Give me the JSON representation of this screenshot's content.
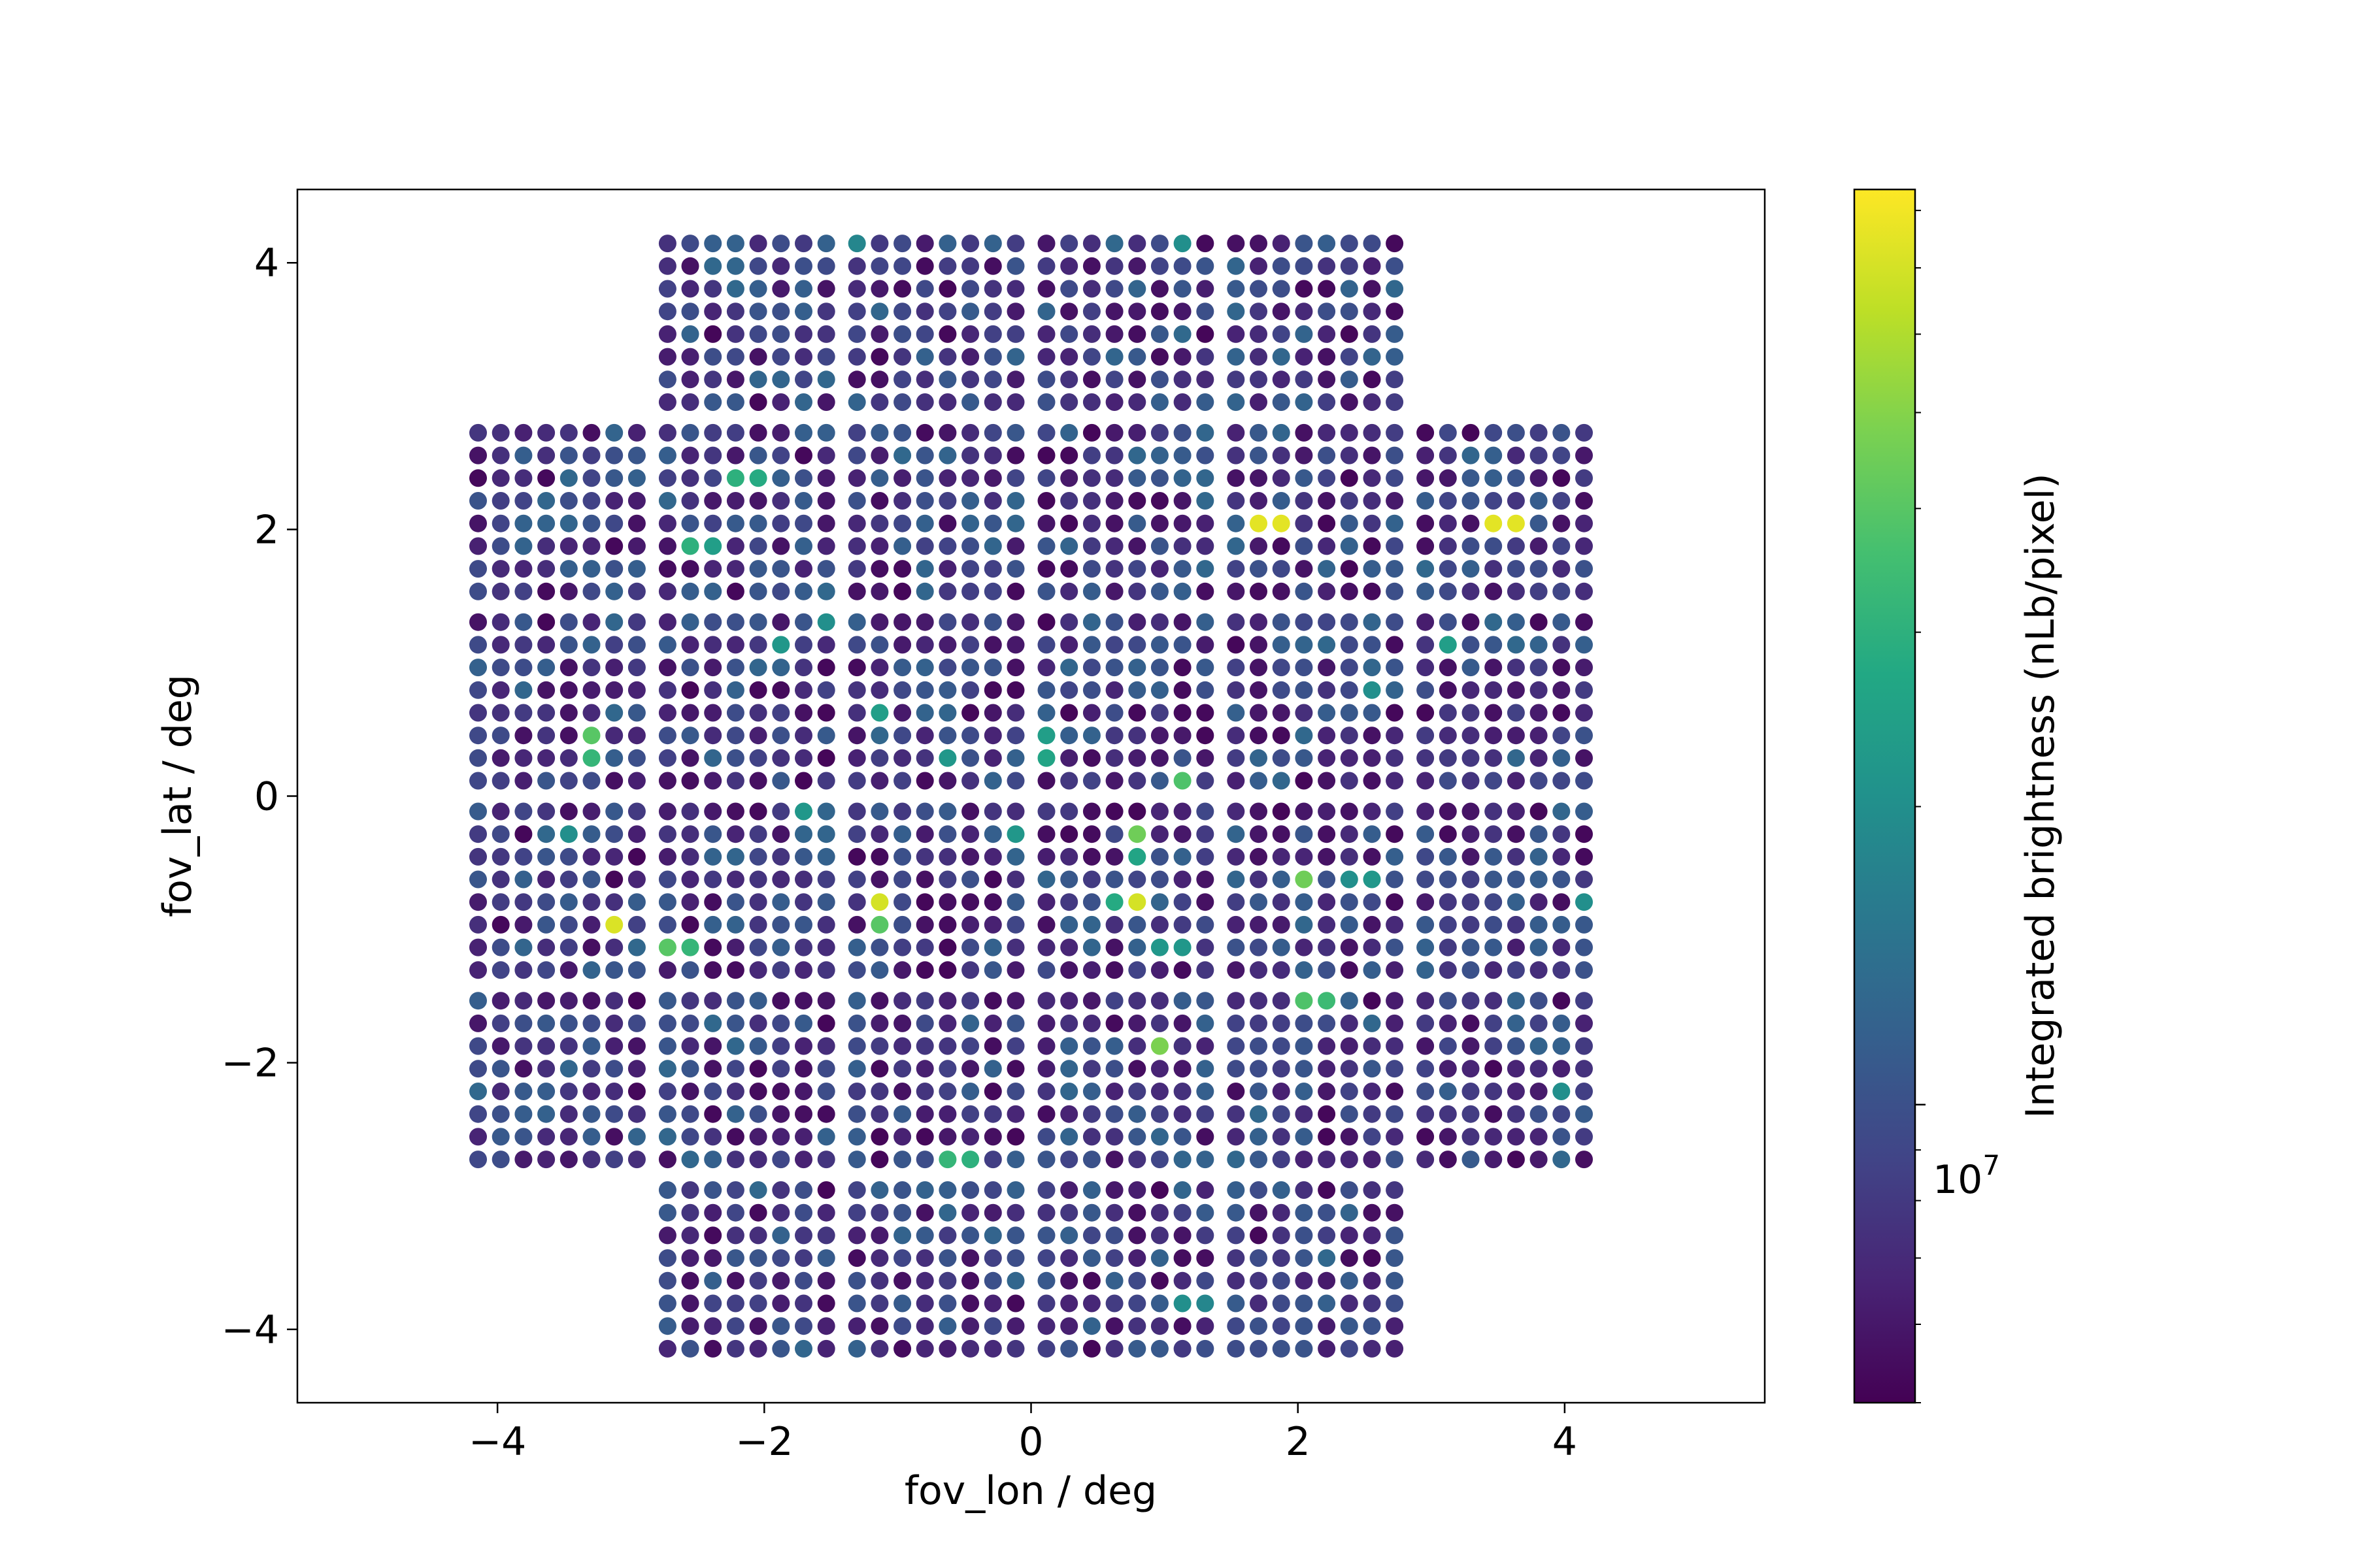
{
  "chart_data": {
    "type": "scatter",
    "title": "",
    "xlabel": "fov_lon / deg",
    "ylabel": "fov_lat / deg",
    "xlim": [
      -5.5,
      5.5
    ],
    "ylim": [
      -4.55,
      4.55
    ],
    "x_ticks": [
      -4,
      -2,
      0,
      2,
      4
    ],
    "y_ticks": [
      -4,
      -2,
      0,
      2,
      4
    ],
    "x_tick_labels": [
      "−4",
      "−2",
      "0",
      "2",
      "4"
    ],
    "y_tick_labels": [
      "−4",
      "−2",
      "0",
      "2",
      "4"
    ],
    "grid": false,
    "legend": "none",
    "point_grid": {
      "spacing_deg": 0.17,
      "points_per_block": 8,
      "block_step_deg": 1.42,
      "block_centers_deg": [
        -3.55,
        -2.13,
        -0.71,
        0.71,
        2.13,
        3.55
      ],
      "excluded_corner_blocks": [
        [
          -3.55,
          3.55
        ],
        [
          3.55,
          3.55
        ],
        [
          -3.55,
          -3.55
        ],
        [
          3.55,
          -3.55
        ]
      ],
      "base_brightness": 7800000,
      "brightness_variation_range": [
        5200000,
        13000000
      ]
    },
    "bright_points": [
      {
        "x": 1.72,
        "y": 2.04,
        "v": 75000000
      },
      {
        "x": 1.89,
        "y": 2.04,
        "v": 75000000
      },
      {
        "x": 3.46,
        "y": 2.04,
        "v": 75000000
      },
      {
        "x": 3.63,
        "y": 2.04,
        "v": 75000000
      },
      {
        "x": -2.21,
        "y": 2.38,
        "v": 30000000
      },
      {
        "x": -2.04,
        "y": 2.38,
        "v": 28000000
      },
      {
        "x": -2.55,
        "y": 1.87,
        "v": 30000000
      },
      {
        "x": -2.38,
        "y": 1.87,
        "v": 24000000
      },
      {
        "x": -3.29,
        "y": 0.45,
        "v": 40000000
      },
      {
        "x": -3.29,
        "y": 0.28,
        "v": 32000000
      },
      {
        "x": -3.12,
        "y": -0.96,
        "v": 72000000
      },
      {
        "x": -2.72,
        "y": -1.13,
        "v": 40000000
      },
      {
        "x": -2.55,
        "y": -1.13,
        "v": 32000000
      },
      {
        "x": -1.13,
        "y": -0.79,
        "v": 70000000
      },
      {
        "x": -1.13,
        "y": -0.96,
        "v": 40000000
      },
      {
        "x": 0.79,
        "y": -0.79,
        "v": 70000000
      },
      {
        "x": 0.79,
        "y": -0.28,
        "v": 45000000
      },
      {
        "x": 0.62,
        "y": -0.79,
        "v": 28000000
      },
      {
        "x": 1.13,
        "y": 0.11,
        "v": 38000000
      },
      {
        "x": 0.96,
        "y": -1.87,
        "v": 48000000
      },
      {
        "x": 2.04,
        "y": -0.62,
        "v": 45000000
      },
      {
        "x": 2.04,
        "y": -1.53,
        "v": 38000000
      },
      {
        "x": 2.21,
        "y": -1.53,
        "v": 34000000
      },
      {
        "x": -0.62,
        "y": -2.72,
        "v": 32000000
      },
      {
        "x": -0.45,
        "y": -2.72,
        "v": 30000000
      },
      {
        "x": 3.12,
        "y": 1.13,
        "v": 24000000
      },
      {
        "x": -1.13,
        "y": 0.62,
        "v": 24000000
      },
      {
        "x": 0.11,
        "y": 0.45,
        "v": 24000000
      },
      {
        "x": 0.11,
        "y": 0.28,
        "v": 26000000
      },
      {
        "x": -0.11,
        "y": -0.28,
        "v": 22000000
      },
      {
        "x": -1.7,
        "y": -0.11,
        "v": 22000000
      },
      {
        "x": -1.87,
        "y": 1.13,
        "v": 22000000
      },
      {
        "x": -1.53,
        "y": 1.3,
        "v": 20000000
      },
      {
        "x": 0.96,
        "y": -1.13,
        "v": 22000000
      },
      {
        "x": 1.13,
        "y": -1.13,
        "v": 22000000
      },
      {
        "x": 2.55,
        "y": -0.62,
        "v": 22000000
      },
      {
        "x": 2.55,
        "y": 0.79,
        "v": 20000000
      },
      {
        "x": -3.46,
        "y": -0.28,
        "v": 20000000
      },
      {
        "x": -2.89,
        "y": -1.13,
        "v": 24000000
      },
      {
        "x": 1.13,
        "y": -3.8,
        "v": 20000000
      },
      {
        "x": 1.3,
        "y": -3.8,
        "v": 18000000
      },
      {
        "x": 4.14,
        "y": -0.79,
        "v": 20000000
      },
      {
        "x": -1.3,
        "y": 4.14,
        "v": 18000000
      },
      {
        "x": 1.13,
        "y": 4.14,
        "v": 20000000
      },
      {
        "x": 0.79,
        "y": -0.45,
        "v": 26000000
      },
      {
        "x": -0.62,
        "y": 0.28,
        "v": 22000000
      },
      {
        "x": 2.38,
        "y": -0.62,
        "v": 20000000
      },
      {
        "x": 4.0,
        "y": -2.21,
        "v": 20000000
      }
    ],
    "colorbar": {
      "label": "Integrated brightness (nLb/pixel)",
      "scale": "log",
      "range": [
        5000000,
        84000000
      ],
      "major_tick_value": 10000000,
      "major_tick_label_base": "10",
      "major_tick_label_exp": "7",
      "colormap": "viridis"
    },
    "colormap_stops": [
      "#440154",
      "#482475",
      "#414487",
      "#355f8d",
      "#2a788e",
      "#21918c",
      "#22a884",
      "#44bf70",
      "#7ad151",
      "#bddf26",
      "#fde725"
    ],
    "spine_color": "#000000"
  }
}
